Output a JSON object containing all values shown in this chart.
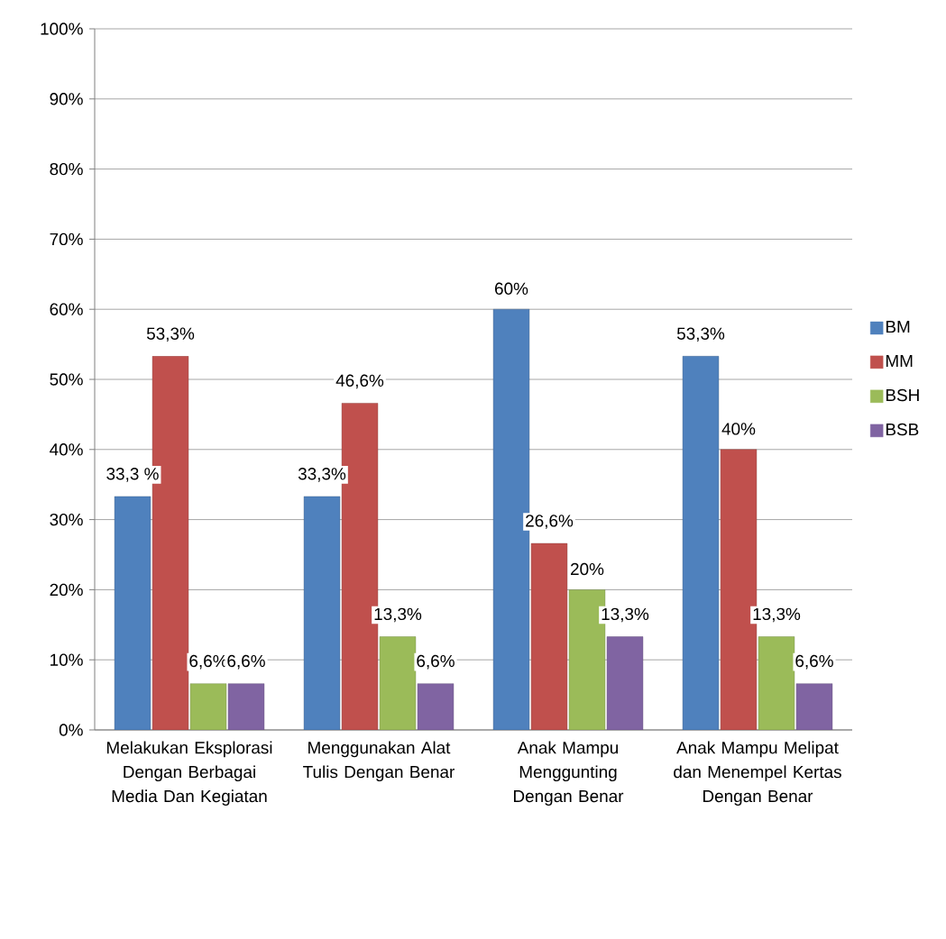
{
  "chart_data": {
    "type": "bar",
    "categories": [
      "Melakukan Eksplorasi Dengan Berbagai Media Dan Kegiatan",
      "Menggunakan Alat Tulis Dengan Benar",
      "Anak Mampu Menggunting Dengan Benar",
      "Anak Mampu Melipat dan Menempel Kertas Dengan Benar"
    ],
    "series": [
      {
        "name": "BM",
        "color": "#4f81bd",
        "values": [
          33.3,
          33.3,
          60,
          53.3
        ],
        "value_labels": [
          "33,3 %",
          "33,3%",
          "60%",
          "53,3%"
        ]
      },
      {
        "name": "MM",
        "color": "#c0504d",
        "values": [
          53.3,
          46.6,
          26.6,
          40
        ],
        "value_labels": [
          "53,3%",
          "46,6%",
          "26,6%",
          "40%"
        ]
      },
      {
        "name": "BSH",
        "color": "#9bbb59",
        "values": [
          6.6,
          13.3,
          20,
          13.3
        ],
        "value_labels": [
          "6,6%",
          "13,3%",
          "20%",
          "13,3%"
        ]
      },
      {
        "name": "BSB",
        "color": "#8064a2",
        "values": [
          6.6,
          6.6,
          13.3,
          6.6
        ],
        "value_labels": [
          "6,6%",
          "6,6%",
          "13,3%",
          "6,6%"
        ]
      }
    ],
    "ylim": [
      0,
      100
    ],
    "yticks": [
      {
        "value": 0,
        "label": "0%"
      },
      {
        "value": 10,
        "label": "10%"
      },
      {
        "value": 20,
        "label": "20%"
      },
      {
        "value": 30,
        "label": "30%"
      },
      {
        "value": 40,
        "label": "40%"
      },
      {
        "value": 50,
        "label": "50%"
      },
      {
        "value": 60,
        "label": "60%"
      },
      {
        "value": 70,
        "label": "70%"
      },
      {
        "value": 80,
        "label": "80%"
      },
      {
        "value": 90,
        "label": "90%"
      },
      {
        "value": 100,
        "label": "100%"
      }
    ],
    "grid": "y",
    "legend": "right"
  }
}
